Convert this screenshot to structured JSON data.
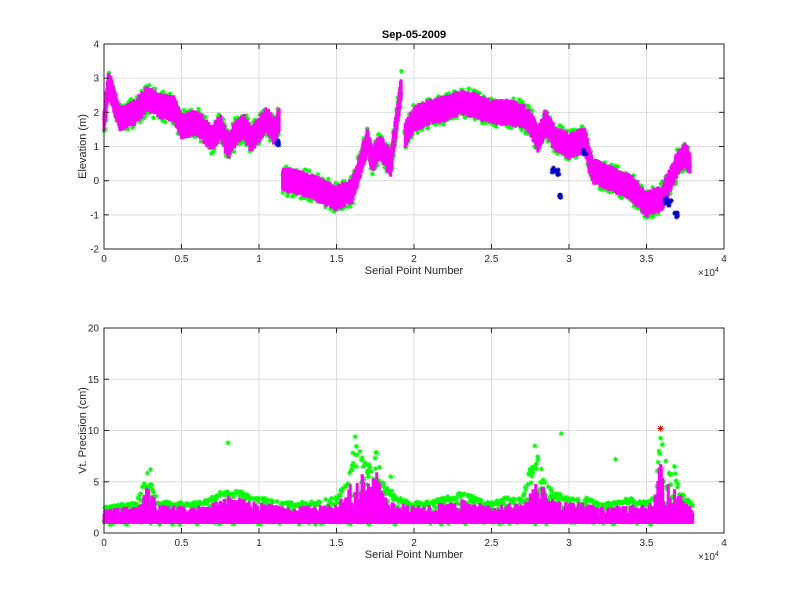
{
  "chart_data": [
    {
      "type": "scatter",
      "title": "Sep-05-2009",
      "xlabel": "Serial Point Number",
      "ylabel": "Elevation (m)",
      "xlim": [
        0,
        40000
      ],
      "ylim": [
        -2,
        4
      ],
      "x_ticks": [
        "0",
        "0.5",
        "1",
        "1.5",
        "2",
        "2.5",
        "3",
        "3.5",
        "4"
      ],
      "x_tick_values": [
        0,
        5000,
        10000,
        15000,
        20000,
        25000,
        30000,
        35000,
        40000
      ],
      "y_ticks": [
        "-2",
        "-1",
        "0",
        "1",
        "2",
        "3",
        "4"
      ],
      "y_tick_values": [
        -2,
        -1,
        0,
        1,
        2,
        3,
        4
      ],
      "x_exponent": {
        "base": "×10",
        "power": "4"
      },
      "grid": true,
      "series_colors": {
        "points": "#00ff00",
        "median": "#ff00ff",
        "flagged": "#0000cc"
      },
      "series": [
        {
          "role": "elevation-points",
          "x": [
            0,
            300,
            1000,
            2000,
            2800,
            3500,
            4500,
            5000,
            6000,
            7000,
            7500,
            8000,
            8500,
            9000,
            9500,
            10000,
            10500,
            11000,
            11300,
            11500,
            12000,
            13000,
            14000,
            15000,
            16000,
            16500,
            17000,
            17300,
            17800,
            18500,
            19200,
            19400,
            20000,
            21000,
            22000,
            23000,
            24000,
            25000,
            26000,
            27000,
            27500,
            28000,
            28500,
            29000,
            30000,
            31000,
            31500,
            32000,
            33000,
            34000,
            35000,
            35500,
            36000,
            36500,
            37000,
            37500,
            37800
          ],
          "y": [
            1.7,
            2.9,
            1.8,
            2.0,
            2.4,
            2.2,
            2.1,
            1.6,
            1.7,
            1.2,
            1.6,
            1.0,
            1.4,
            1.6,
            1.2,
            1.5,
            1.8,
            1.4,
            1.8,
            0.0,
            0.0,
            -0.1,
            -0.3,
            -0.5,
            -0.3,
            0.4,
            1.2,
            0.6,
            1.0,
            0.5,
            2.8,
            1.3,
            1.8,
            2.0,
            2.1,
            2.3,
            2.2,
            2.0,
            2.0,
            1.9,
            1.7,
            1.2,
            1.7,
            1.3,
            1.0,
            1.2,
            0.3,
            0.2,
            0.0,
            -0.2,
            -0.7,
            -0.6,
            -0.5,
            0.0,
            0.5,
            0.8,
            0.5
          ]
        },
        {
          "role": "flagged-points",
          "x": [
            11200,
            29000,
            29300,
            29400,
            31000,
            36200,
            36500,
            36900
          ],
          "y": [
            1.1,
            0.3,
            0.25,
            -0.45,
            0.85,
            -0.6,
            -0.65,
            -1.0
          ]
        }
      ]
    },
    {
      "type": "scatter",
      "title": "",
      "xlabel": "Serial Point Number",
      "ylabel": "Vt. Precision (cm)",
      "xlim": [
        0,
        40000
      ],
      "ylim": [
        0,
        20
      ],
      "x_ticks": [
        "0",
        "0.5",
        "1",
        "1.5",
        "2",
        "2.5",
        "3",
        "3.5",
        "4"
      ],
      "x_tick_values": [
        0,
        5000,
        10000,
        15000,
        20000,
        25000,
        30000,
        35000,
        40000
      ],
      "y_ticks": [
        "0",
        "5",
        "10",
        "15",
        "20"
      ],
      "y_tick_values": [
        0,
        5,
        10,
        15,
        20
      ],
      "x_exponent": {
        "base": "×10",
        "power": "4"
      },
      "grid": true,
      "series_colors": {
        "points": "#00ff00",
        "median": "#ff00ff",
        "max": "#ff0000"
      },
      "series": [
        {
          "role": "precision-points",
          "x": [
            0,
            1000,
            2000,
            2800,
            3500,
            5000,
            6000,
            7000,
            8000,
            9000,
            10000,
            11000,
            12000,
            13000,
            14000,
            15000,
            15800,
            16200,
            17000,
            17600,
            18000,
            19000,
            20000,
            21000,
            22000,
            23000,
            24000,
            25000,
            26000,
            27000,
            27500,
            28000,
            28500,
            29000,
            30000,
            31000,
            32000,
            33000,
            34000,
            35000,
            35500,
            35900,
            36300,
            37000,
            37500,
            38000
          ],
          "y": [
            2.5,
            2.8,
            3.0,
            6.0,
            3.2,
            3.0,
            3.0,
            3.5,
            4.5,
            4.0,
            3.5,
            3.2,
            3.0,
            3.0,
            3.2,
            3.5,
            5.5,
            9.4,
            6.5,
            8.5,
            5.0,
            3.5,
            3.0,
            3.2,
            3.5,
            4.0,
            3.5,
            3.0,
            3.5,
            3.5,
            6.5,
            7.5,
            5.0,
            4.0,
            3.5,
            3.5,
            3.0,
            3.0,
            3.5,
            3.0,
            4.0,
            9.5,
            7.0,
            5.5,
            3.5,
            3.0
          ],
          "isolated_x": [
            3000,
            8000,
            16200,
            18500,
            27800,
            29500,
            33000,
            36800
          ],
          "isolated_y": [
            6.2,
            8.8,
            9.4,
            5.5,
            8.5,
            9.7,
            7.2,
            6.5
          ]
        },
        {
          "role": "max-point",
          "x": [
            35900
          ],
          "y": [
            10.2
          ]
        }
      ]
    }
  ]
}
